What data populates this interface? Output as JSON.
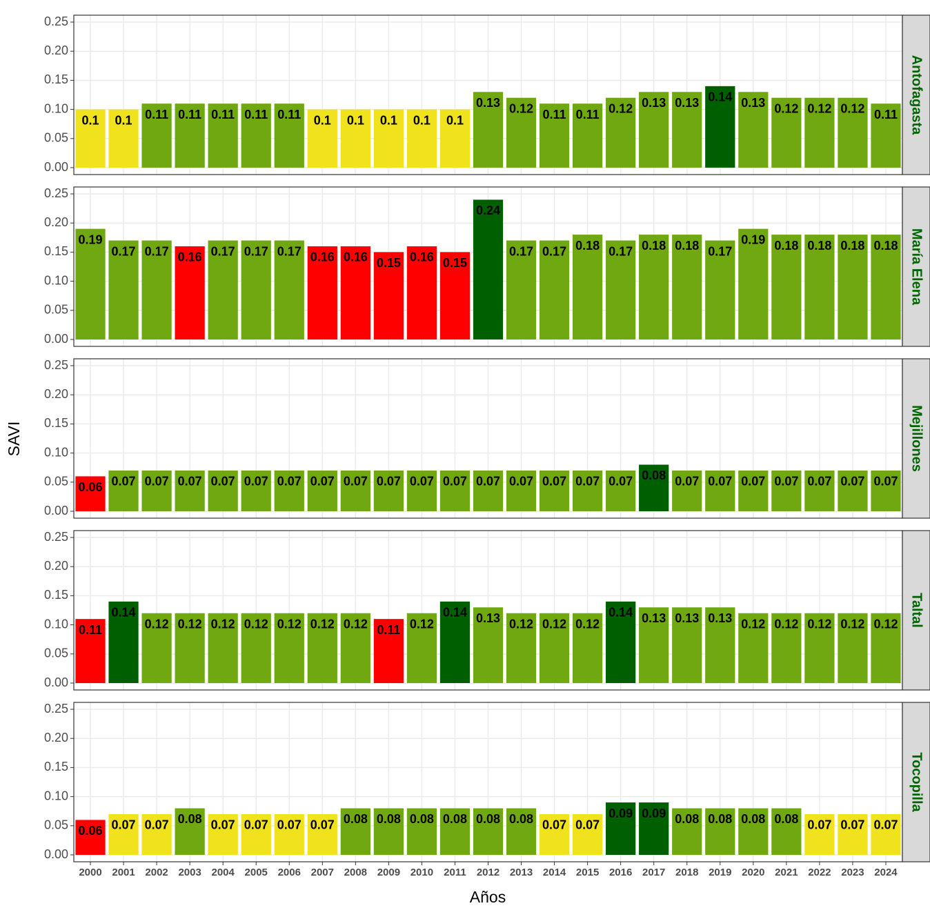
{
  "chart_data": {
    "type": "bar",
    "ylabel": "SAVI",
    "xlabel": "Años",
    "categories": [
      "2000",
      "2001",
      "2002",
      "2003",
      "2004",
      "2005",
      "2006",
      "2007",
      "2008",
      "2009",
      "2010",
      "2011",
      "2012",
      "2013",
      "2014",
      "2015",
      "2016",
      "2017",
      "2018",
      "2019",
      "2020",
      "2021",
      "2022",
      "2023",
      "2024"
    ],
    "ylim": [
      0,
      0.25
    ],
    "yticks": [
      {
        "value": 0,
        "label": "0.00"
      },
      {
        "value": 0.05,
        "label": "0.05"
      },
      {
        "value": 0.1,
        "label": "0.10"
      },
      {
        "value": 0.15,
        "label": "0.15"
      },
      {
        "value": 0.2,
        "label": "0.20"
      },
      {
        "value": 0.25,
        "label": "0.25"
      }
    ],
    "grid": true,
    "facets": [
      {
        "title": "Antofagasta",
        "values": [
          0.1,
          0.1,
          0.11,
          0.11,
          0.11,
          0.11,
          0.11,
          0.1,
          0.1,
          0.1,
          0.1,
          0.1,
          0.13,
          0.12,
          0.11,
          0.11,
          0.12,
          0.13,
          0.13,
          0.14,
          0.13,
          0.12,
          0.12,
          0.12,
          0.11
        ],
        "colors": [
          "#f0e21d",
          "#f0e21d",
          "#6fa811",
          "#6fa811",
          "#6fa811",
          "#6fa811",
          "#6fa811",
          "#f0e21d",
          "#f0e21d",
          "#f0e21d",
          "#f0e21d",
          "#f0e21d",
          "#6fa811",
          "#6fa811",
          "#6fa811",
          "#6fa811",
          "#6fa811",
          "#6fa811",
          "#6fa811",
          "#005f00",
          "#6fa811",
          "#6fa811",
          "#6fa811",
          "#6fa811",
          "#6fa811"
        ]
      },
      {
        "title": "María Elena",
        "values": [
          0.19,
          0.17,
          0.17,
          0.16,
          0.17,
          0.17,
          0.17,
          0.16,
          0.16,
          0.15,
          0.16,
          0.15,
          0.24,
          0.17,
          0.17,
          0.18,
          0.17,
          0.18,
          0.18,
          0.17,
          0.19,
          0.18,
          0.18,
          0.18,
          0.18
        ],
        "colors": [
          "#6fa811",
          "#6fa811",
          "#6fa811",
          "#ff0000",
          "#6fa811",
          "#6fa811",
          "#6fa811",
          "#ff0000",
          "#ff0000",
          "#ff0000",
          "#ff0000",
          "#ff0000",
          "#005f00",
          "#6fa811",
          "#6fa811",
          "#6fa811",
          "#6fa811",
          "#6fa811",
          "#6fa811",
          "#6fa811",
          "#6fa811",
          "#6fa811",
          "#6fa811",
          "#6fa811",
          "#6fa811"
        ]
      },
      {
        "title": "Mejillones",
        "values": [
          0.06,
          0.07,
          0.07,
          0.07,
          0.07,
          0.07,
          0.07,
          0.07,
          0.07,
          0.07,
          0.07,
          0.07,
          0.07,
          0.07,
          0.07,
          0.07,
          0.07,
          0.08,
          0.07,
          0.07,
          0.07,
          0.07,
          0.07,
          0.07,
          0.07
        ],
        "colors": [
          "#ff0000",
          "#6fa811",
          "#6fa811",
          "#6fa811",
          "#6fa811",
          "#6fa811",
          "#6fa811",
          "#6fa811",
          "#6fa811",
          "#6fa811",
          "#6fa811",
          "#6fa811",
          "#6fa811",
          "#6fa811",
          "#6fa811",
          "#6fa811",
          "#6fa811",
          "#005f00",
          "#6fa811",
          "#6fa811",
          "#6fa811",
          "#6fa811",
          "#6fa811",
          "#6fa811",
          "#6fa811"
        ]
      },
      {
        "title": "Taltal",
        "values": [
          0.11,
          0.14,
          0.12,
          0.12,
          0.12,
          0.12,
          0.12,
          0.12,
          0.12,
          0.11,
          0.12,
          0.14,
          0.13,
          0.12,
          0.12,
          0.12,
          0.14,
          0.13,
          0.13,
          0.13,
          0.12,
          0.12,
          0.12,
          0.12,
          0.12
        ],
        "colors": [
          "#ff0000",
          "#005f00",
          "#6fa811",
          "#6fa811",
          "#6fa811",
          "#6fa811",
          "#6fa811",
          "#6fa811",
          "#6fa811",
          "#ff0000",
          "#6fa811",
          "#005f00",
          "#6fa811",
          "#6fa811",
          "#6fa811",
          "#6fa811",
          "#005f00",
          "#6fa811",
          "#6fa811",
          "#6fa811",
          "#6fa811",
          "#6fa811",
          "#6fa811",
          "#6fa811",
          "#6fa811"
        ]
      },
      {
        "title": "Tocopilla",
        "values": [
          0.06,
          0.07,
          0.07,
          0.08,
          0.07,
          0.07,
          0.07,
          0.07,
          0.08,
          0.08,
          0.08,
          0.08,
          0.08,
          0.08,
          0.07,
          0.07,
          0.09,
          0.09,
          0.08,
          0.08,
          0.08,
          0.08,
          0.07,
          0.07,
          0.07
        ],
        "colors": [
          "#ff0000",
          "#f0e21d",
          "#f0e21d",
          "#6fa811",
          "#f0e21d",
          "#f0e21d",
          "#f0e21d",
          "#f0e21d",
          "#6fa811",
          "#6fa811",
          "#6fa811",
          "#6fa811",
          "#6fa811",
          "#6fa811",
          "#f0e21d",
          "#f0e21d",
          "#005f00",
          "#005f00",
          "#6fa811",
          "#6fa811",
          "#6fa811",
          "#6fa811",
          "#f0e21d",
          "#f0e21d",
          "#f0e21d"
        ]
      }
    ]
  }
}
